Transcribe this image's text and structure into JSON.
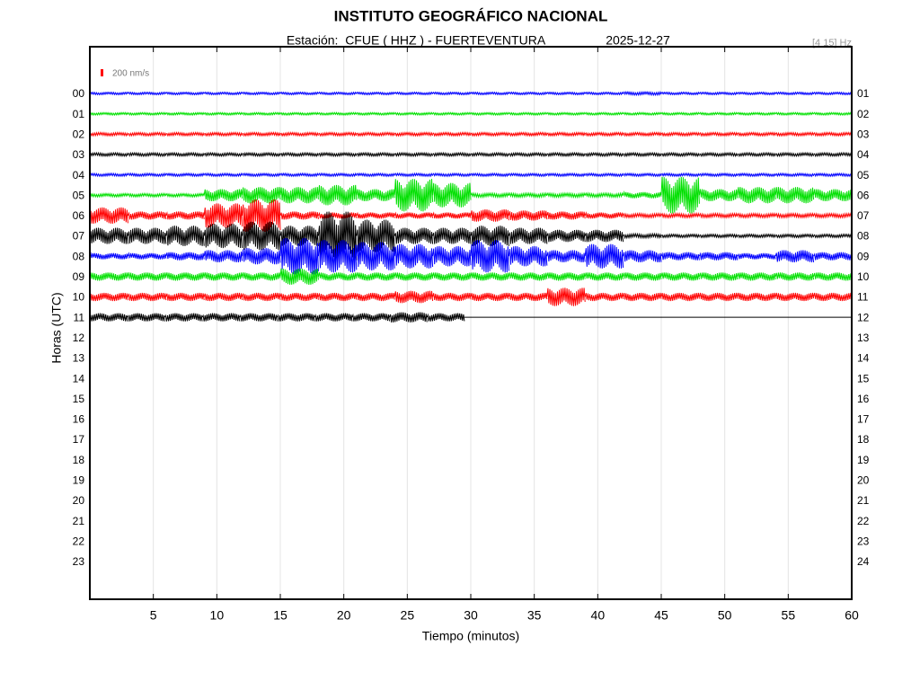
{
  "chart_data": {
    "type": "helicorder",
    "title": "INSTITUTO GEOGRÁFICO NACIONAL",
    "station": "Estación:  CFUE ( HHZ ) - FUERTEVENTURA",
    "date": "2025-12-27",
    "filter": "[4 15] Hz",
    "scale_label": "200 nm/s",
    "xlabel": "Tiempo (minutos)",
    "ylabel": "Horas (UTC)",
    "xlim": [
      0,
      60
    ],
    "xticks": [
      5,
      10,
      15,
      20,
      25,
      30,
      35,
      40,
      45,
      50,
      55,
      60
    ],
    "grid": true,
    "rows_left": [
      "00",
      "01",
      "02",
      "03",
      "04",
      "05",
      "06",
      "07",
      "08",
      "09",
      "10",
      "11",
      "12",
      "13",
      "14",
      "15",
      "16",
      "17",
      "18",
      "19",
      "20",
      "21",
      "22",
      "23"
    ],
    "rows_right": [
      "01",
      "02",
      "03",
      "04",
      "05",
      "06",
      "07",
      "08",
      "09",
      "10",
      "11",
      "12",
      "13",
      "14",
      "15",
      "16",
      "17",
      "18",
      "19",
      "20",
      "21",
      "22",
      "23",
      "24"
    ],
    "traces": [
      {
        "color": "#0000ff",
        "amplitude": [
          0.06,
          0.06,
          0.06,
          0.06,
          0.06,
          0.06,
          0.06,
          0.06,
          0.06,
          0.06,
          0.06,
          0.06,
          0.06,
          0.06,
          0.08,
          0.06,
          0.06,
          0.06,
          0.06,
          0.06
        ]
      },
      {
        "color": "#00e000",
        "amplitude": [
          0.06,
          0.06,
          0.06,
          0.06,
          0.06,
          0.06,
          0.06,
          0.06,
          0.06,
          0.06,
          0.06,
          0.06,
          0.06,
          0.06,
          0.06,
          0.06,
          0.06,
          0.06,
          0.06,
          0.06
        ]
      },
      {
        "color": "#ff0000",
        "amplitude": [
          0.08,
          0.08,
          0.08,
          0.08,
          0.08,
          0.08,
          0.08,
          0.08,
          0.08,
          0.08,
          0.08,
          0.08,
          0.08,
          0.08,
          0.08,
          0.08,
          0.08,
          0.08,
          0.08,
          0.08
        ]
      },
      {
        "color": "#000000",
        "amplitude": [
          0.08,
          0.08,
          0.08,
          0.08,
          0.08,
          0.08,
          0.08,
          0.08,
          0.08,
          0.08,
          0.08,
          0.08,
          0.08,
          0.08,
          0.08,
          0.08,
          0.08,
          0.08,
          0.08,
          0.08
        ]
      },
      {
        "color": "#0000ff",
        "amplitude": [
          0.07,
          0.07,
          0.07,
          0.07,
          0.07,
          0.07,
          0.07,
          0.07,
          0.07,
          0.07,
          0.07,
          0.07,
          0.07,
          0.07,
          0.07,
          0.07,
          0.07,
          0.07,
          0.07,
          0.07
        ]
      },
      {
        "color": "#00e000",
        "amplitude": [
          0.08,
          0.08,
          0.08,
          0.3,
          0.4,
          0.4,
          0.5,
          0.3,
          0.8,
          0.6,
          0.1,
          0.1,
          0.1,
          0.1,
          0.15,
          0.9,
          0.3,
          0.4,
          0.4,
          0.3
        ]
      },
      {
        "color": "#ff0000",
        "amplitude": [
          0.4,
          0.2,
          0.2,
          0.6,
          0.8,
          0.2,
          0.15,
          0.15,
          0.15,
          0.15,
          0.3,
          0.25,
          0.2,
          0.15,
          0.1,
          0.1,
          0.1,
          0.1,
          0.1,
          0.1
        ]
      },
      {
        "color": "#000000",
        "amplitude": [
          0.4,
          0.4,
          0.5,
          0.6,
          0.7,
          0.5,
          1.2,
          0.8,
          0.4,
          0.4,
          0.5,
          0.4,
          0.3,
          0.3,
          0.1,
          0.08,
          0.08,
          0.08,
          0.08,
          0.08
        ]
      },
      {
        "color": "#0000ff",
        "amplitude": [
          0.15,
          0.15,
          0.2,
          0.3,
          0.4,
          0.9,
          0.8,
          0.7,
          0.6,
          0.5,
          0.8,
          0.5,
          0.3,
          0.6,
          0.3,
          0.2,
          0.2,
          0.15,
          0.3,
          0.2
        ]
      },
      {
        "color": "#00e000",
        "amplitude": [
          0.2,
          0.2,
          0.2,
          0.2,
          0.2,
          0.4,
          0.2,
          0.2,
          0.2,
          0.2,
          0.2,
          0.2,
          0.2,
          0.2,
          0.2,
          0.2,
          0.2,
          0.2,
          0.2,
          0.2
        ]
      },
      {
        "color": "#ff0000",
        "amplitude": [
          0.2,
          0.2,
          0.2,
          0.2,
          0.2,
          0.2,
          0.2,
          0.2,
          0.3,
          0.2,
          0.2,
          0.2,
          0.45,
          0.2,
          0.2,
          0.2,
          0.2,
          0.2,
          0.2,
          0.2
        ]
      },
      {
        "color": "#000000",
        "end": 29.5,
        "amplitude": [
          0.2,
          0.2,
          0.2,
          0.2,
          0.2,
          0.2,
          0.2,
          0.2,
          0.25,
          0.2
        ]
      }
    ]
  }
}
